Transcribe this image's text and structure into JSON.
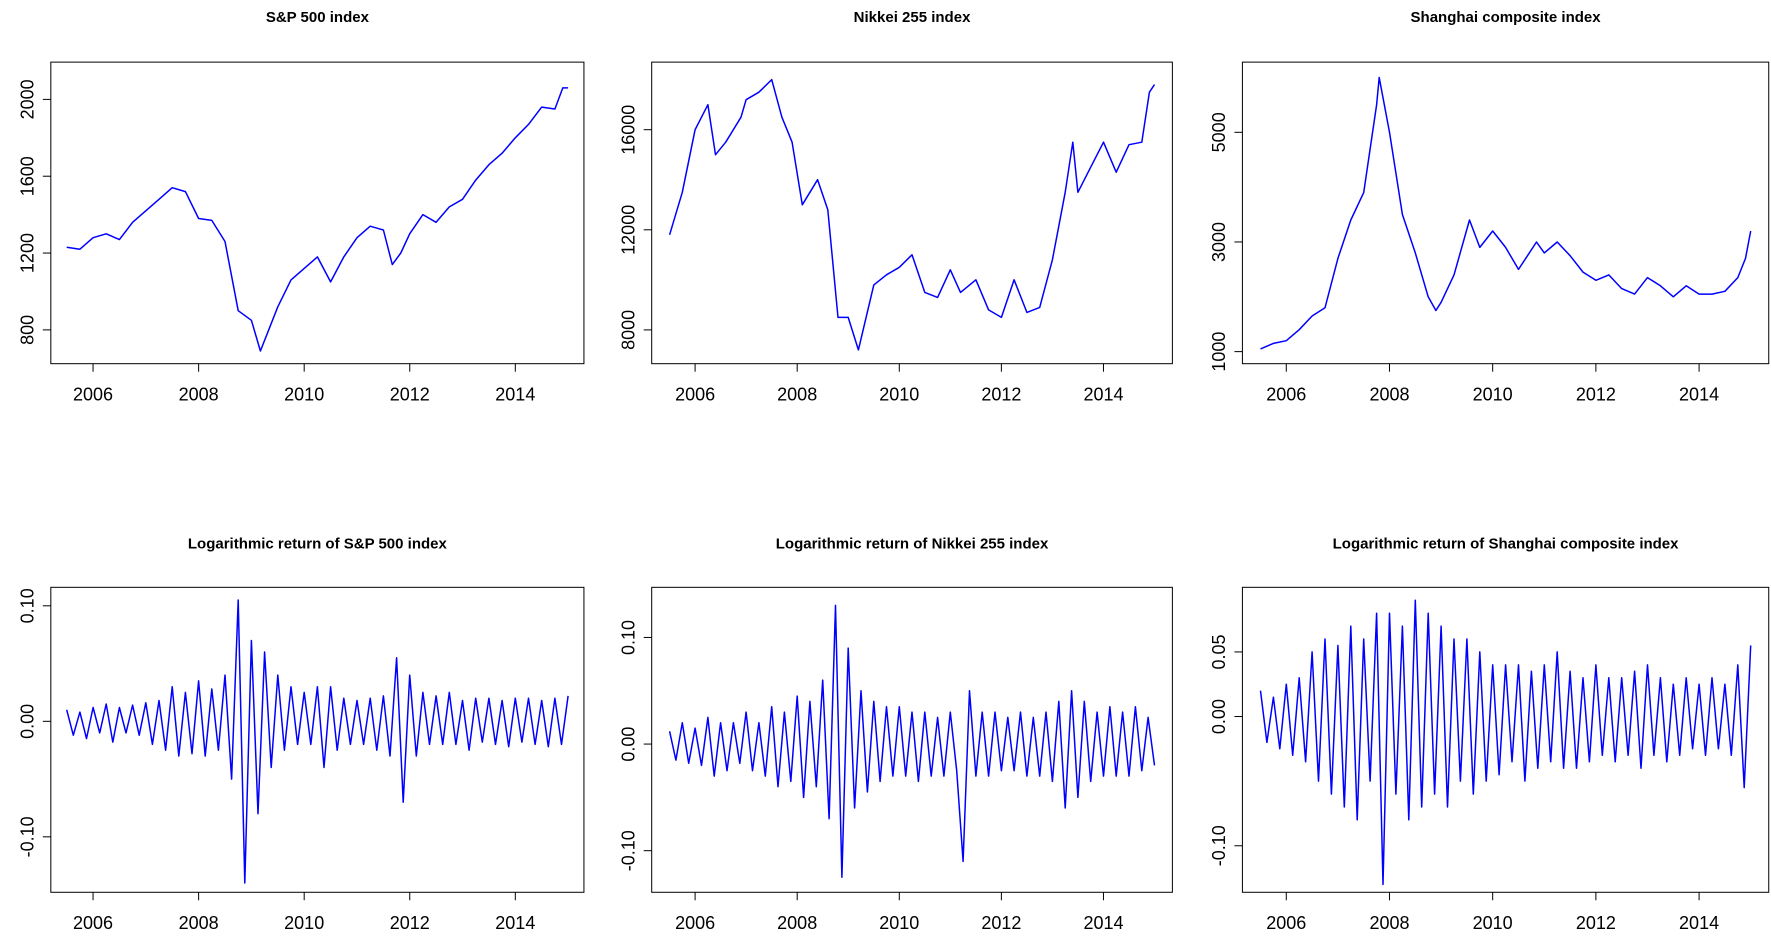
{
  "chart_data": [
    {
      "type": "line",
      "title": "S&P 500 index",
      "color": "#0000ff",
      "xlim": [
        2005.2,
        2015.3
      ],
      "xticks": [
        2006,
        2008,
        2010,
        2012,
        2014
      ],
      "ylim": [
        624,
        2194
      ],
      "yticks": [
        800,
        1200,
        1600,
        2000
      ],
      "x": [
        2005.5,
        2005.75,
        2006.0,
        2006.25,
        2006.5,
        2006.75,
        2007.0,
        2007.25,
        2007.5,
        2007.75,
        2008.0,
        2008.25,
        2008.5,
        2008.75,
        2009.0,
        2009.17,
        2009.5,
        2009.75,
        2010.0,
        2010.25,
        2010.5,
        2010.75,
        2011.0,
        2011.25,
        2011.5,
        2011.67,
        2011.83,
        2012.0,
        2012.25,
        2012.5,
        2012.75,
        2013.0,
        2013.25,
        2013.5,
        2013.75,
        2014.0,
        2014.25,
        2014.5,
        2014.75,
        2014.9,
        2015.0
      ],
      "values": [
        1230,
        1220,
        1280,
        1300,
        1270,
        1360,
        1420,
        1480,
        1540,
        1520,
        1380,
        1370,
        1260,
        900,
        850,
        690,
        920,
        1060,
        1120,
        1180,
        1050,
        1180,
        1280,
        1340,
        1320,
        1140,
        1200,
        1300,
        1400,
        1360,
        1440,
        1480,
        1580,
        1660,
        1720,
        1800,
        1870,
        1960,
        1950,
        2060,
        2060
      ]
    },
    {
      "type": "line",
      "title": "Nikkei 255 index",
      "color": "#0000ff",
      "xlim": [
        2005.15,
        2015.35
      ],
      "xticks": [
        2006,
        2008,
        2010,
        2012,
        2014
      ],
      "ylim": [
        6650,
        18700
      ],
      "yticks": [
        8000,
        12000,
        16000
      ],
      "x": [
        2005.5,
        2005.75,
        2006.0,
        2006.25,
        2006.4,
        2006.6,
        2006.9,
        2007.0,
        2007.25,
        2007.5,
        2007.7,
        2007.9,
        2008.1,
        2008.4,
        2008.6,
        2008.8,
        2009.0,
        2009.2,
        2009.5,
        2009.75,
        2010.0,
        2010.25,
        2010.5,
        2010.75,
        2011.0,
        2011.2,
        2011.5,
        2011.75,
        2012.0,
        2012.25,
        2012.5,
        2012.75,
        2013.0,
        2013.25,
        2013.4,
        2013.5,
        2013.75,
        2014.0,
        2014.25,
        2014.5,
        2014.75,
        2014.9,
        2015.0
      ],
      "values": [
        11800,
        13500,
        16000,
        17000,
        15000,
        15500,
        16500,
        17200,
        17500,
        18000,
        16500,
        15500,
        13000,
        14000,
        12800,
        8500,
        8500,
        7200,
        9800,
        10200,
        10500,
        11000,
        9500,
        9300,
        10400,
        9500,
        10000,
        8800,
        8500,
        10000,
        8700,
        8900,
        10800,
        13500,
        15500,
        13500,
        14500,
        15500,
        14300,
        15400,
        15500,
        17500,
        17800
      ]
    },
    {
      "type": "line",
      "title": "Shanghai composite index",
      "color": "#0000ff",
      "xlim": [
        2005.15,
        2015.35
      ],
      "xticks": [
        2006,
        2008,
        2010,
        2012,
        2014
      ],
      "ylim": [
        780,
        6280
      ],
      "yticks": [
        1000,
        3000,
        5000
      ],
      "x": [
        2005.5,
        2005.75,
        2006.0,
        2006.25,
        2006.5,
        2006.75,
        2007.0,
        2007.25,
        2007.5,
        2007.75,
        2007.8,
        2008.0,
        2008.25,
        2008.5,
        2008.75,
        2008.9,
        2009.0,
        2009.25,
        2009.55,
        2009.75,
        2010.0,
        2010.25,
        2010.5,
        2010.85,
        2011.0,
        2011.25,
        2011.5,
        2011.75,
        2012.0,
        2012.25,
        2012.5,
        2012.75,
        2013.0,
        2013.25,
        2013.5,
        2013.75,
        2014.0,
        2014.25,
        2014.5,
        2014.75,
        2014.9,
        2015.0
      ],
      "values": [
        1050,
        1150,
        1200,
        1400,
        1650,
        1800,
        2700,
        3400,
        3900,
        5500,
        6000,
        5000,
        3500,
        2800,
        2000,
        1750,
        1900,
        2400,
        3400,
        2900,
        3200,
        2900,
        2500,
        3000,
        2800,
        3000,
        2750,
        2450,
        2300,
        2400,
        2150,
        2050,
        2350,
        2200,
        2000,
        2200,
        2050,
        2050,
        2100,
        2350,
        2700,
        3200
      ]
    },
    {
      "type": "line",
      "title": "Logarithmic return of S&P 500 index",
      "color": "#0000ff",
      "xlim": [
        2005.2,
        2015.3
      ],
      "xticks": [
        2006,
        2008,
        2010,
        2012,
        2014
      ],
      "ylim": [
        -0.148,
        0.116
      ],
      "yticks": [
        {
          "value": -0.1,
          "label": "-0.10"
        },
        {
          "value": 0,
          "label": "0.00"
        },
        {
          "value": 0.1,
          "label": "0.10"
        }
      ],
      "x": [
        2005.5,
        2005.625,
        2005.75,
        2005.875,
        2006.0,
        2006.125,
        2006.25,
        2006.375,
        2006.5,
        2006.625,
        2006.75,
        2006.875,
        2007.0,
        2007.125,
        2007.25,
        2007.375,
        2007.5,
        2007.625,
        2007.75,
        2007.875,
        2008.0,
        2008.125,
        2008.25,
        2008.375,
        2008.5,
        2008.625,
        2008.75,
        2008.875,
        2009.0,
        2009.125,
        2009.25,
        2009.375,
        2009.5,
        2009.625,
        2009.75,
        2009.875,
        2010.0,
        2010.125,
        2010.25,
        2010.375,
        2010.5,
        2010.625,
        2010.75,
        2010.875,
        2011.0,
        2011.125,
        2011.25,
        2011.375,
        2011.5,
        2011.625,
        2011.75,
        2011.875,
        2012.0,
        2012.125,
        2012.25,
        2012.375,
        2012.5,
        2012.625,
        2012.75,
        2012.875,
        2013.0,
        2013.125,
        2013.25,
        2013.375,
        2013.5,
        2013.625,
        2013.75,
        2013.875,
        2014.0,
        2014.125,
        2014.25,
        2014.375,
        2014.5,
        2014.625,
        2014.75,
        2014.875,
        2015.0
      ],
      "values": [
        0.01,
        -0.012,
        0.008,
        -0.015,
        0.012,
        -0.01,
        0.015,
        -0.018,
        0.012,
        -0.01,
        0.014,
        -0.012,
        0.016,
        -0.02,
        0.018,
        -0.025,
        0.03,
        -0.03,
        0.025,
        -0.028,
        0.035,
        -0.03,
        0.028,
        -0.025,
        0.04,
        -0.05,
        0.105,
        -0.14,
        0.07,
        -0.08,
        0.06,
        -0.04,
        0.04,
        -0.025,
        0.03,
        -0.02,
        0.025,
        -0.02,
        0.03,
        -0.04,
        0.03,
        -0.025,
        0.02,
        -0.02,
        0.018,
        -0.02,
        0.02,
        -0.025,
        0.022,
        -0.03,
        0.055,
        -0.07,
        0.04,
        -0.03,
        0.025,
        -0.02,
        0.022,
        -0.02,
        0.025,
        -0.02,
        0.018,
        -0.025,
        0.02,
        -0.018,
        0.02,
        -0.02,
        0.018,
        -0.022,
        0.02,
        -0.018,
        0.02,
        -0.02,
        0.018,
        -0.022,
        0.02,
        -0.02,
        0.022
      ]
    },
    {
      "type": "line",
      "title": "Logarithmic return of Nikkei 255 index",
      "color": "#0000ff",
      "xlim": [
        2005.15,
        2015.35
      ],
      "xticks": [
        2006,
        2008,
        2010,
        2012,
        2014
      ],
      "ylim": [
        -0.139,
        0.147
      ],
      "yticks": [
        {
          "value": -0.1,
          "label": "-0.10"
        },
        {
          "value": 0,
          "label": "0.00"
        },
        {
          "value": 0.1,
          "label": "0.10"
        }
      ],
      "x": [
        2005.5,
        2005.625,
        2005.75,
        2005.875,
        2006.0,
        2006.125,
        2006.25,
        2006.375,
        2006.5,
        2006.625,
        2006.75,
        2006.875,
        2007.0,
        2007.125,
        2007.25,
        2007.375,
        2007.5,
        2007.625,
        2007.75,
        2007.875,
        2008.0,
        2008.125,
        2008.25,
        2008.375,
        2008.5,
        2008.625,
        2008.75,
        2008.875,
        2009.0,
        2009.125,
        2009.25,
        2009.375,
        2009.5,
        2009.625,
        2009.75,
        2009.875,
        2010.0,
        2010.125,
        2010.25,
        2010.375,
        2010.5,
        2010.625,
        2010.75,
        2010.875,
        2011.0,
        2011.125,
        2011.25,
        2011.375,
        2011.5,
        2011.625,
        2011.75,
        2011.875,
        2012.0,
        2012.125,
        2012.25,
        2012.375,
        2012.5,
        2012.625,
        2012.75,
        2012.875,
        2013.0,
        2013.125,
        2013.25,
        2013.375,
        2013.5,
        2013.625,
        2013.75,
        2013.875,
        2014.0,
        2014.125,
        2014.25,
        2014.375,
        2014.5,
        2014.625,
        2014.75,
        2014.875,
        2015.0
      ],
      "values": [
        0.012,
        -0.015,
        0.02,
        -0.018,
        0.015,
        -0.02,
        0.025,
        -0.03,
        0.02,
        -0.025,
        0.02,
        -0.018,
        0.03,
        -0.025,
        0.02,
        -0.03,
        0.035,
        -0.04,
        0.03,
        -0.035,
        0.045,
        -0.05,
        0.04,
        -0.04,
        0.06,
        -0.07,
        0.13,
        -0.125,
        0.09,
        -0.06,
        0.05,
        -0.045,
        0.04,
        -0.035,
        0.035,
        -0.03,
        0.035,
        -0.03,
        0.03,
        -0.035,
        0.03,
        -0.03,
        0.025,
        -0.03,
        0.03,
        -0.025,
        -0.11,
        0.05,
        -0.03,
        0.03,
        -0.03,
        0.03,
        -0.025,
        0.025,
        -0.025,
        0.03,
        -0.03,
        0.025,
        -0.03,
        0.03,
        -0.035,
        0.04,
        -0.06,
        0.05,
        -0.05,
        0.04,
        -0.035,
        0.03,
        -0.03,
        0.035,
        -0.03,
        0.03,
        -0.03,
        0.035,
        -0.025,
        0.025,
        -0.02
      ]
    },
    {
      "type": "line",
      "title": "Logarithmic return of Shanghai composite index",
      "color": "#0000ff",
      "xlim": [
        2005.15,
        2015.35
      ],
      "xticks": [
        2006,
        2008,
        2010,
        2012,
        2014
      ],
      "ylim": [
        -0.136,
        0.1
      ],
      "yticks": [
        {
          "value": -0.1,
          "label": "-0.10"
        },
        {
          "value": 0,
          "label": "0.00"
        },
        {
          "value": 0.05,
          "label": "0.05"
        }
      ],
      "x": [
        2005.5,
        2005.625,
        2005.75,
        2005.875,
        2006.0,
        2006.125,
        2006.25,
        2006.375,
        2006.5,
        2006.625,
        2006.75,
        2006.875,
        2007.0,
        2007.125,
        2007.25,
        2007.375,
        2007.5,
        2007.625,
        2007.75,
        2007.875,
        2008.0,
        2008.125,
        2008.25,
        2008.375,
        2008.5,
        2008.625,
        2008.75,
        2008.875,
        2009.0,
        2009.125,
        2009.25,
        2009.375,
        2009.5,
        2009.625,
        2009.75,
        2009.875,
        2010.0,
        2010.125,
        2010.25,
        2010.375,
        2010.5,
        2010.625,
        2010.75,
        2010.875,
        2011.0,
        2011.125,
        2011.25,
        2011.375,
        2011.5,
        2011.625,
        2011.75,
        2011.875,
        2012.0,
        2012.125,
        2012.25,
        2012.375,
        2012.5,
        2012.625,
        2012.75,
        2012.875,
        2013.0,
        2013.125,
        2013.25,
        2013.375,
        2013.5,
        2013.625,
        2013.75,
        2013.875,
        2014.0,
        2014.125,
        2014.25,
        2014.375,
        2014.5,
        2014.625,
        2014.75,
        2014.875,
        2015.0
      ],
      "values": [
        0.02,
        -0.02,
        0.015,
        -0.025,
        0.025,
        -0.03,
        0.03,
        -0.035,
        0.05,
        -0.05,
        0.06,
        -0.06,
        0.055,
        -0.07,
        0.07,
        -0.08,
        0.06,
        -0.05,
        0.08,
        -0.13,
        0.08,
        -0.06,
        0.07,
        -0.08,
        0.09,
        -0.07,
        0.08,
        -0.06,
        0.07,
        -0.07,
        0.06,
        -0.05,
        0.06,
        -0.06,
        0.05,
        -0.05,
        0.04,
        -0.045,
        0.04,
        -0.035,
        0.04,
        -0.05,
        0.035,
        -0.04,
        0.04,
        -0.035,
        0.05,
        -0.04,
        0.035,
        -0.04,
        0.03,
        -0.035,
        0.04,
        -0.03,
        0.03,
        -0.035,
        0.03,
        -0.03,
        0.035,
        -0.04,
        0.04,
        -0.03,
        0.03,
        -0.035,
        0.025,
        -0.03,
        0.03,
        -0.025,
        0.025,
        -0.03,
        0.03,
        -0.025,
        0.025,
        -0.03,
        0.04,
        -0.055,
        0.055
      ]
    }
  ]
}
